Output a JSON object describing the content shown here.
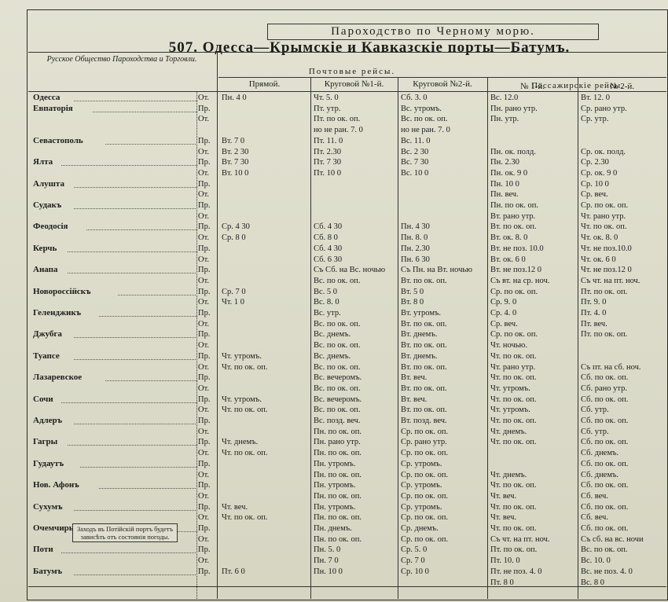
{
  "header": {
    "top_title": "Пароходство по Черному морю.",
    "title": "507. Одесса—Крымскіе и Кавказскіе порты—Батумъ.",
    "company": "Русское Общество Пароходства и Торговли.",
    "groups": [
      "Почтовые рейсы.",
      "Пассажирскіе рейсы."
    ],
    "columns": [
      "Прямой.",
      "Круговой №1-й.",
      "Круговой №2-й.",
      "№ 1-й.",
      "№ 2-й."
    ]
  },
  "note": "Заходъ въ Потійскій портъ будетъ зависѣть отъ состоянія погоды.",
  "rows": [
    {
      "station": "Одесса",
      "mark": "От.",
      "cells": [
        "Пн. 4 0",
        "Чт. 5. 0",
        "Сб. 3. 0",
        "Вс. 12.0",
        "Вт. 12. 0"
      ]
    },
    {
      "station": "Евпаторія",
      "mark": "Пр.",
      "cells": [
        null,
        "Пт. утр.",
        "Вс. утромъ.",
        "Пн. рано утр.",
        "Ср. рано утр."
      ]
    },
    {
      "mark": "От.",
      "cells": [
        null,
        "Пт. по ок. оп.",
        "Вс. по ок. оп.",
        "Пн. утр.",
        "Ср. утр."
      ]
    },
    {
      "cells": [
        null,
        "но не ран. 7. 0",
        "но не ран. 7. 0",
        null,
        null
      ]
    },
    {
      "station": "Севастополь",
      "mark": "Пр.",
      "cells": [
        "Вт. 7 0",
        "Пт. 11. 0",
        "Вс. 11. 0",
        null,
        null
      ]
    },
    {
      "mark": "От.",
      "cells": [
        "Вт. 2 30",
        "Пт. 2.30",
        "Вс. 2 30",
        "Пн. ок. полд.",
        "Ср. ок. полд."
      ]
    },
    {
      "station": "Ялта",
      "mark": "Пр.",
      "cells": [
        "Вт. 7 30",
        "Пт. 7 30",
        "Вс. 7 30",
        "Пн. 2.30",
        "Ср. 2.30"
      ]
    },
    {
      "mark": "От.",
      "cells": [
        "Вт. 10 0",
        "Пт. 10 0",
        "Вс. 10 0",
        "Пн. ок. 9 0",
        "Ср. ок. 9 0"
      ]
    },
    {
      "station": "Алушта",
      "mark": "Пр.",
      "cells": [
        null,
        null,
        null,
        "Пн. 10 0",
        "Ср. 10 0"
      ]
    },
    {
      "mark": "От.",
      "cells": [
        null,
        null,
        null,
        "Пн. веч.",
        "Ср. веч."
      ]
    },
    {
      "station": "Судакъ",
      "mark": "Пр.",
      "cells": [
        null,
        null,
        null,
        "Пн. по ок. оп.",
        "Ср. по ок. оп."
      ]
    },
    {
      "mark": "От.",
      "cells": [
        null,
        null,
        null,
        "Вт. рано утр.",
        "Чт. рано утр."
      ]
    },
    {
      "station": "Феодосія",
      "mark": "Пр.",
      "cells": [
        "Ср. 4 30",
        "Сб. 4 30",
        "Пн. 4 30",
        "Вт. по ок. оп.",
        "Чт. по ок. оп."
      ]
    },
    {
      "mark": "От.",
      "cells": [
        "Ср. 8 0",
        "Сб. 8 0",
        "Пн. 8. 0",
        "Вт. ок. 8. 0",
        "Чт. ок. 8. 0"
      ]
    },
    {
      "station": "Керчь",
      "mark": "Пр.",
      "cells": [
        null,
        "Сб. 4 30",
        "Пн. 2.30",
        "Вт. не поз. 10.0",
        "Чт. не поз.10.0"
      ]
    },
    {
      "mark": "От.",
      "cells": [
        null,
        "Сб. 6 30",
        "Пн. 6 30",
        "Вт. ок. 6 0",
        "Чт. ок. 6 0"
      ]
    },
    {
      "station": "Анапа",
      "mark": "Пр.",
      "cells": [
        null,
        "Съ Сб. на Вс. ночью",
        "Съ Пн. на Вт. ночью",
        "Вт. не поз.12 0",
        "Чт. не поз.12 0"
      ]
    },
    {
      "mark": "От.",
      "cells": [
        null,
        "Вс. по ок. оп.",
        "Вт. по ок. оп.",
        "Съ вт. на ср. ноч.",
        "Съ чт. на пт. ноч."
      ]
    },
    {
      "station": "Новороссійскъ",
      "mark": "Пр.",
      "cells": [
        "Ср. 7 0",
        "Вс. 5 0",
        "Вт. 5 0",
        "Ср. по ок. оп.",
        "Пт. по ок. оп."
      ]
    },
    {
      "mark": "От.",
      "cells": [
        "Чт. 1 0",
        "Вс. 8. 0",
        "Вт. 8 0",
        "Ср. 9. 0",
        "Пт. 9. 0"
      ]
    },
    {
      "station": "Геленджикъ",
      "mark": "Пр.",
      "cells": [
        null,
        "Вс. утр.",
        "Вт. утромъ.",
        "Ср. 4. 0",
        "Пт. 4. 0"
      ]
    },
    {
      "mark": "От.",
      "cells": [
        null,
        "Вс. по ок. оп.",
        "Вт. по ок. оп.",
        "Ср. веч.",
        "Пт. веч."
      ]
    },
    {
      "station": "Джубга",
      "mark": "Пр.",
      "cells": [
        null,
        "Вс. днемъ.",
        "Вт. днемъ.",
        "Ср. по ок. оп.",
        "Пт. по ок. оп."
      ]
    },
    {
      "mark": "От.",
      "cells": [
        null,
        "Вс. по ок. оп.",
        "Вт. по ок. оп.",
        "Чт. ночью.",
        null
      ]
    },
    {
      "station": "Туапсе",
      "mark": "Пр.",
      "cells": [
        "Чт. утромъ.",
        "Вс. днемъ.",
        "Вт. днемъ.",
        "Чт. по ок. оп.",
        null
      ]
    },
    {
      "mark": "От.",
      "cells": [
        "Чт. по ок. оп.",
        "Вс. по ок. оп.",
        "Вт. по ок. оп.",
        "Чт. рано утр.",
        "Съ пт. на сб. ноч."
      ]
    },
    {
      "station": "Лазаревское",
      "mark": "Пр.",
      "cells": [
        null,
        "Вс. вечеромъ.",
        "Вт. веч.",
        "Чт. по ок. оп.",
        "Сб. по ок. оп."
      ]
    },
    {
      "mark": "От.",
      "cells": [
        null,
        "Вс. по ок. оп.",
        "Вт. по ок. оп.",
        "Чт. утромъ.",
        "Сб. рано утр."
      ]
    },
    {
      "station": "Сочи",
      "mark": "Пр.",
      "cells": [
        "Чт. утромъ.",
        "Вс. вечеромъ.",
        "Вт. веч.",
        "Чт. по ок. оп.",
        "Сб. по ок. оп."
      ]
    },
    {
      "mark": "От.",
      "cells": [
        "Чт. по ок. оп.",
        "Вс. по ок. оп.",
        "Вт. по ок. оп.",
        "Чт. утромъ.",
        "Сб. утр."
      ]
    },
    {
      "station": "Адлеръ",
      "mark": "Пр.",
      "cells": [
        null,
        "Вс. позд. веч.",
        "Вт. позд. веч.",
        "Чт. по ок. оп.",
        "Сб. по ок. оп."
      ]
    },
    {
      "mark": "От.",
      "cells": [
        null,
        "Пн. по ок. оп.",
        "Ср. по ок. оп.",
        "Чт. днемъ.",
        "Сб. утр."
      ]
    },
    {
      "station": "Гагры",
      "mark": "Пр.",
      "cells": [
        "Чт. днемъ.",
        "Пн. рано утр.",
        "Ср. рано утр.",
        "Чт. по ок. оп.",
        "Сб. по ок. оп."
      ]
    },
    {
      "mark": "От.",
      "cells": [
        "Чт. по ок. оп.",
        "Пн. по ок. оп.",
        "Ср. по ок. оп.",
        null,
        "Сб. днемъ."
      ]
    },
    {
      "station": "Гудаутъ",
      "mark": "Пр.",
      "cells": [
        null,
        "Пн. утромъ.",
        "Ср. утромъ.",
        null,
        "Сб. по ок. оп."
      ]
    },
    {
      "mark": "От.",
      "cells": [
        null,
        "Пн. по ок. оп.",
        "Ср. по ок. оп.",
        "Чт. днемъ.",
        "Сб. днемъ."
      ]
    },
    {
      "station": "Нов. Афонъ",
      "mark": "Пр.",
      "cells": [
        null,
        "Пн. утромъ.",
        "Ср. утромъ.",
        "Чт. по ок. оп.",
        "Сб. по ок. оп."
      ]
    },
    {
      "mark": "От.",
      "cells": [
        null,
        "Пн. по ок. оп.",
        "Ср. по ок. оп.",
        "Чт. веч.",
        "Сб. веч."
      ]
    },
    {
      "station": "Сухумъ",
      "mark": "Пр.",
      "cells": [
        "Чт. веч.",
        "Пн. утромъ.",
        "Ср. утромъ.",
        "Чт. по ок. оп.",
        "Сб. по ок. оп."
      ]
    },
    {
      "mark": "От.",
      "cells": [
        "Чт. по ок. оп.",
        "Пн. по ок. оп.",
        "Ср. по ок. оп.",
        "Чт. веч.",
        "Сб. веч."
      ]
    },
    {
      "station": "Очемчиры",
      "mark": "Пр.",
      "cells": [
        null,
        "Пн. днемъ.",
        "Ср. днемъ.",
        "Чт. по ок. оп.",
        "Сб. по ок. оп."
      ]
    },
    {
      "mark": "От.",
      "cells": [
        null,
        "Пн. по ок. оп.",
        "Ср. по ок. оп.",
        "Съ чт. на пт. ноч.",
        "Съ сб. на вс. ночи"
      ]
    },
    {
      "station": "Поти",
      "mark": "Пр.",
      "cells": [
        null,
        "Пн. 5. 0",
        "Ср. 5. 0",
        "Пт. по ок. оп.",
        "Вс. по ок. оп."
      ]
    },
    {
      "mark": "От.",
      "cells": [
        null,
        "Пн. 7 0",
        "Ср. 7 0",
        "Пт. 10. 0",
        "Вс. 10. 0"
      ]
    },
    {
      "station": "Батумъ",
      "mark": "Пр.",
      "cells": [
        "Пт. 6 0",
        "Пн. 10 0",
        "Ср. 10 0",
        "Пт. не поз. 4. 0",
        "Вс. не поз. 4. 0"
      ]
    },
    {
      "cells": [
        null,
        null,
        null,
        "Пт. 8 0",
        "Вс. 8 0"
      ]
    }
  ]
}
